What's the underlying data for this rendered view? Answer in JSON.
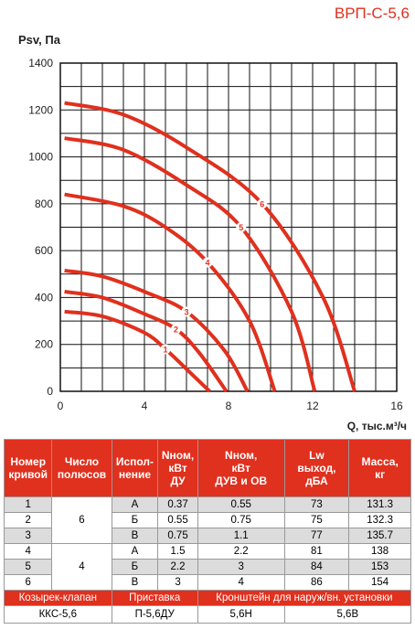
{
  "chart_data": {
    "type": "line",
    "title": "ВРП-С-5,6",
    "y_label": "Psv, Па",
    "x_label": "Q, тыс.м³/ч",
    "xlim": [
      0,
      16
    ],
    "ylim": [
      0,
      1400
    ],
    "xticks": [
      0,
      4,
      8,
      12,
      16
    ],
    "yticks": [
      0,
      200,
      400,
      600,
      800,
      1000,
      1200,
      1400
    ],
    "xgrid": [
      0,
      1,
      2,
      3,
      4,
      5,
      6,
      7,
      8,
      9,
      10,
      11,
      12,
      13,
      14,
      15,
      16
    ],
    "ygrid": [
      0,
      100,
      200,
      300,
      400,
      500,
      600,
      700,
      800,
      900,
      1000,
      1100,
      1200,
      1300,
      1400
    ],
    "grid": true,
    "color": "#e0301e",
    "series": [
      {
        "name": "1",
        "x": [
          0.2,
          2,
          4,
          5,
          6,
          7.1
        ],
        "values": [
          340,
          320,
          250,
          180,
          95,
          0
        ]
      },
      {
        "name": "2",
        "x": [
          0.2,
          2,
          4,
          5.5,
          6.6,
          7.9
        ],
        "values": [
          425,
          400,
          330,
          265,
          165,
          0
        ]
      },
      {
        "name": "3",
        "x": [
          0.2,
          2,
          4,
          6,
          7.8,
          8.9
        ],
        "values": [
          515,
          490,
          425,
          340,
          175,
          0
        ]
      },
      {
        "name": "4",
        "x": [
          0.2,
          3,
          5,
          7,
          9,
          10.2
        ],
        "values": [
          840,
          790,
          700,
          550,
          300,
          0
        ]
      },
      {
        "name": "5",
        "x": [
          0.2,
          3,
          6,
          8.6,
          11,
          12.1
        ],
        "values": [
          1080,
          1030,
          880,
          700,
          340,
          0
        ]
      },
      {
        "name": "6",
        "x": [
          0.2,
          3,
          6,
          9.6,
          12.5,
          14
        ],
        "values": [
          1230,
          1180,
          1040,
          800,
          400,
          0
        ]
      }
    ]
  },
  "table": {
    "header": [
      "Номер\nкривой",
      "Число\nполюсов",
      "Испол-\nнение",
      "Nном,\nкВт\nДУ",
      "Nном,\nкВт\nДУВ и ОВ",
      "Lw\nвыход,\nдБА",
      "Масса,\nкг"
    ],
    "poles": [
      "6",
      "4"
    ],
    "rows": [
      [
        "1",
        "А",
        "0.37",
        "0.55",
        "73",
        "131.3"
      ],
      [
        "2",
        "Б",
        "0.55",
        "0.75",
        "75",
        "132.3"
      ],
      [
        "3",
        "В",
        "0.75",
        "1.1",
        "77",
        "135.7"
      ],
      [
        "4",
        "А",
        "1.5",
        "2.2",
        "81",
        "138"
      ],
      [
        "5",
        "Б",
        "2.2",
        "3",
        "84",
        "153"
      ],
      [
        "6",
        "В",
        "3",
        "4",
        "86",
        "154"
      ]
    ],
    "acc_header": [
      "Козырек-клапан",
      "Приставка",
      "Кронштейн для наруж/вн. установки"
    ],
    "acc_values": [
      "ККС-5,6",
      "П-5,6ДУ",
      "5,6Н",
      "5,6В"
    ]
  }
}
